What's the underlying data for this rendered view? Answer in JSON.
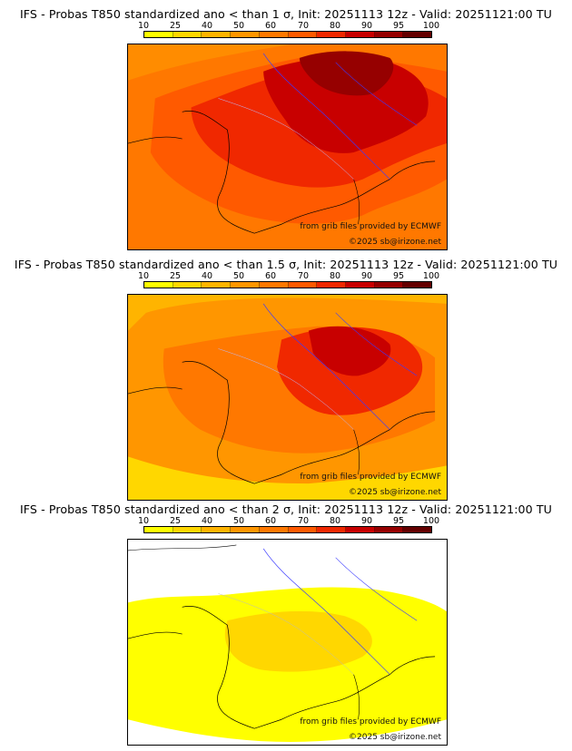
{
  "scale": {
    "ticks": [
      "10",
      "25",
      "40",
      "50",
      "60",
      "70",
      "80",
      "90",
      "95",
      "100"
    ],
    "colors": [
      "#ffff00",
      "#ffd700",
      "#ffb400",
      "#ff9600",
      "#ff7800",
      "#ff5a00",
      "#f02800",
      "#c80000",
      "#960000",
      "#640000"
    ]
  },
  "panels": [
    {
      "title": "IFS - Probas T850  standardized ano < than 1 σ, Init: 20251113 12z - Valid: 20251121:00 TU",
      "background": "#ff8c00",
      "credit_source": "from grib files provided by ECMWF",
      "credit_copyright": "©2025 sb@irizone.net"
    },
    {
      "title": "IFS - Probas T850  standardized ano < than 1.5 σ, Init: 20251113 12z - Valid: 20251121:00 TU",
      "background": "#ffb400",
      "credit_source": "from grib files provided by ECMWF",
      "credit_copyright": "©2025 sb@irizone.net"
    },
    {
      "title": "IFS - Probas T850  standardized ano < than 2 σ, Init: 20251113 12z - Valid: 20251121:00 TU",
      "background": "#ffffff",
      "credit_source": "from grib files provided by ECMWF",
      "credit_copyright": "©2025 sb@irizone.net"
    }
  ]
}
